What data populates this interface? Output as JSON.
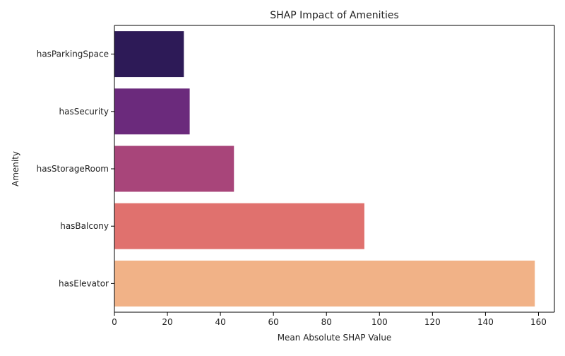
{
  "chart_data": {
    "type": "bar",
    "orientation": "horizontal",
    "title": "SHAP Impact of Amenities",
    "xlabel": "Mean Absolute SHAP Value",
    "ylabel": "Amenity",
    "categories": [
      "hasParkingSpace",
      "hasSecurity",
      "hasStorageRoom",
      "hasBalcony",
      "hasElevator"
    ],
    "values": [
      26.2,
      28.4,
      45.1,
      94.3,
      158.6
    ],
    "colors": [
      "#2d1a57",
      "#6b2a7c",
      "#a8457a",
      "#e0716e",
      "#f1b287"
    ],
    "xlim": [
      0,
      166
    ],
    "xticks": [
      "0",
      "20",
      "40",
      "60",
      "80",
      "100",
      "120",
      "140",
      "160"
    ],
    "grid": false
  }
}
